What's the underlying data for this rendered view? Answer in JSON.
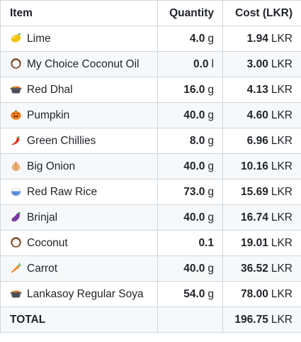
{
  "table": {
    "headers": {
      "item": "Item",
      "quantity": "Quantity",
      "cost": "Cost (LKR)"
    },
    "rows": [
      {
        "icon": "lemon-icon",
        "item": "Lime",
        "qty": "4.0",
        "qty_unit": "g",
        "cost": "1.94",
        "cost_unit": "LKR"
      },
      {
        "icon": "coconut-icon",
        "item": "My Choice Coconut Oil",
        "qty": "0.0",
        "qty_unit": "l",
        "cost": "3.00",
        "cost_unit": "LKR"
      },
      {
        "icon": "pot-of-food-icon",
        "item": "Red Dhal",
        "qty": "16.0",
        "qty_unit": "g",
        "cost": "4.13",
        "cost_unit": "LKR"
      },
      {
        "icon": "pumpkin-icon",
        "item": "Pumpkin",
        "qty": "40.0",
        "qty_unit": "g",
        "cost": "4.60",
        "cost_unit": "LKR"
      },
      {
        "icon": "chili-pepper-icon",
        "item": "Green Chillies",
        "qty": "8.0",
        "qty_unit": "g",
        "cost": "6.96",
        "cost_unit": "LKR"
      },
      {
        "icon": "onion-icon",
        "item": "Big Onion",
        "qty": "40.0",
        "qty_unit": "g",
        "cost": "10.16",
        "cost_unit": "LKR"
      },
      {
        "icon": "rice-bowl-icon",
        "item": "Red Raw Rice",
        "qty": "73.0",
        "qty_unit": "g",
        "cost": "15.69",
        "cost_unit": "LKR"
      },
      {
        "icon": "eggplant-icon",
        "item": "Brinjal",
        "qty": "40.0",
        "qty_unit": "g",
        "cost": "16.74",
        "cost_unit": "LKR"
      },
      {
        "icon": "coconut-icon",
        "item": "Coconut",
        "qty": "0.1",
        "qty_unit": "",
        "cost": "19.01",
        "cost_unit": "LKR"
      },
      {
        "icon": "carrot-icon",
        "item": "Carrot",
        "qty": "40.0",
        "qty_unit": "g",
        "cost": "36.52",
        "cost_unit": "LKR"
      },
      {
        "icon": "pot-of-food-icon",
        "item": "Lankasoy Regular Soya",
        "qty": "54.0",
        "qty_unit": "g",
        "cost": "78.00",
        "cost_unit": "LKR"
      }
    ],
    "total": {
      "label": "TOTAL",
      "cost": "196.75",
      "cost_unit": "LKR"
    }
  },
  "colors": {
    "border": "#d0d7de",
    "stripe": "#f6f8fa",
    "text": "#1f2328"
  }
}
